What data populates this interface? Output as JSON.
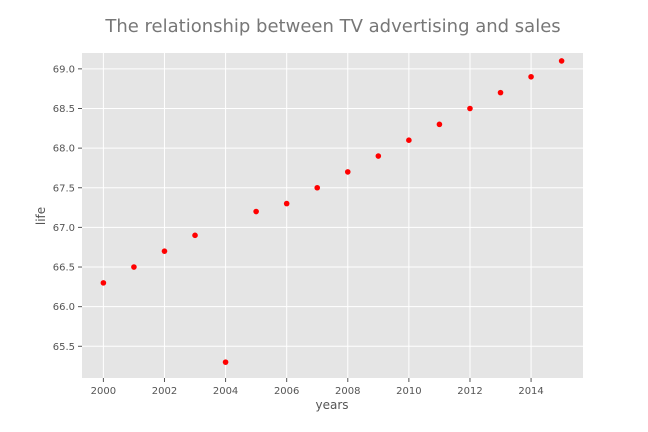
{
  "chart_data": {
    "type": "scatter",
    "title": "The relationship between TV advertising and sales",
    "xlabel": "years",
    "ylabel": "life",
    "xlim": [
      1999.3,
      2015.7
    ],
    "ylim": [
      65.1,
      69.2
    ],
    "x_ticks": [
      2000,
      2002,
      2004,
      2006,
      2008,
      2010,
      2012,
      2014
    ],
    "x_tick_labels": [
      "2000",
      "2002",
      "2004",
      "2006",
      "2008",
      "2010",
      "2012",
      "2014"
    ],
    "y_ticks": [
      65.5,
      66.0,
      66.5,
      67.0,
      67.5,
      68.0,
      68.5,
      69.0
    ],
    "y_tick_labels": [
      "65.5",
      "66.0",
      "66.5",
      "67.0",
      "67.5",
      "68.0",
      "68.5",
      "69.0"
    ],
    "grid": true,
    "style": "ggplot",
    "colors": {
      "background": "#e5e5e5",
      "grid": "#ffffff",
      "marker": "#ff0000",
      "text": "#555555",
      "title": "#777777"
    },
    "series": [
      {
        "x": [
          2000,
          2001,
          2002,
          2003,
          2004,
          2005,
          2006,
          2007,
          2008,
          2009,
          2010,
          2011,
          2012,
          2013,
          2014,
          2015
        ],
        "y": [
          66.3,
          66.5,
          66.7,
          66.9,
          65.3,
          67.2,
          67.3,
          67.5,
          67.7,
          67.9,
          68.1,
          68.3,
          68.5,
          68.7,
          68.9,
          69.1
        ]
      }
    ]
  }
}
